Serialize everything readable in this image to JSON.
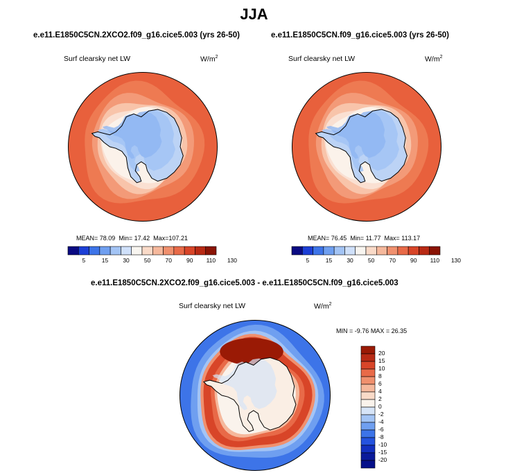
{
  "figure": {
    "season": "JJA",
    "panels": [
      {
        "title": "e.e11.E1850C5CN.2XCO2.f09_g16.cice5.003 (yrs 26-50)",
        "variable": "Surf clearsky net LW",
        "units": "W/m",
        "units_sup": "2",
        "mean_label": "MEAN=",
        "mean": "78.09",
        "min_label": "Min=",
        "min": "17.42",
        "max_label": "Max=",
        "max": "107.21"
      },
      {
        "title": "e.e11.E1850C5CN.f09_g16.cice5.003 (yrs 26-50)",
        "variable": "Surf clearsky net LW",
        "units": "W/m",
        "units_sup": "2",
        "mean_label": "MEAN=",
        "mean": "76.45",
        "min_label": "Min=",
        "min": "11.77",
        "max_label": "Max=",
        "max": "113.17"
      }
    ],
    "diff_panel": {
      "title": "e.e11.E1850C5CN.2XCO2.f09_g16.cice5.003 - e.e11.E1850C5CN.f09_g16.cice5.003",
      "variable": "Surf clearsky net LW",
      "units": "W/m",
      "units_sup": "2",
      "min_label": "MIN =",
      "min": "-9.76",
      "max_label": "MAX =",
      "max": "26.35"
    }
  },
  "chart_data": [
    {
      "type": "heatmap",
      "projection": "south polar stereographic",
      "region": "Antarctica",
      "colorbar": {
        "orientation": "horizontal",
        "tick_labels": [
          "5",
          "15",
          "30",
          "50",
          "70",
          "90",
          "110",
          "130"
        ],
        "colors": [
          "#0a0a82",
          "#1c3fd6",
          "#3d74e8",
          "#6f9ff0",
          "#a3c4f5",
          "#cfe0fa",
          "#f8f5f0",
          "#f9dac8",
          "#f5b89c",
          "#f0906e",
          "#e86a48",
          "#d84528",
          "#b82a14",
          "#8a1405"
        ]
      },
      "stats": {
        "mean": 78.09,
        "min": 17.42,
        "max": 107.21
      }
    },
    {
      "type": "heatmap",
      "projection": "south polar stereographic",
      "region": "Antarctica",
      "colorbar": {
        "orientation": "horizontal",
        "tick_labels": [
          "5",
          "15",
          "30",
          "50",
          "70",
          "90",
          "110",
          "130"
        ],
        "colors": [
          "#0a0a82",
          "#1c3fd6",
          "#3d74e8",
          "#6f9ff0",
          "#a3c4f5",
          "#cfe0fa",
          "#f8f5f0",
          "#f9dac8",
          "#f5b89c",
          "#f0906e",
          "#e86a48",
          "#d84528",
          "#b82a14",
          "#8a1405"
        ]
      },
      "stats": {
        "mean": 76.45,
        "min": 11.77,
        "max": 113.17
      }
    },
    {
      "type": "heatmap",
      "projection": "south polar stereographic",
      "region": "Antarctica",
      "colorbar": {
        "orientation": "vertical",
        "tick_labels": [
          "20",
          "15",
          "10",
          "8",
          "6",
          "4",
          "2",
          "0",
          "-2",
          "-4",
          "-6",
          "-8",
          "-10",
          "-15",
          "-20"
        ],
        "colors": [
          "#9a1a05",
          "#b82a14",
          "#d84528",
          "#e86a48",
          "#f0906e",
          "#f5b89c",
          "#f9dac8",
          "#faf3ec",
          "#d6e4f7",
          "#a3c4f5",
          "#6f9ff0",
          "#3d74e8",
          "#2453df",
          "#1230c0",
          "#0a1a9a",
          "#05108a"
        ]
      },
      "stats": {
        "min": -9.76,
        "max": 26.35
      }
    }
  ],
  "colors": {
    "ocean_warm": "#e8603c",
    "ice_blue": "#bcd3f5",
    "coast": "#000000"
  }
}
